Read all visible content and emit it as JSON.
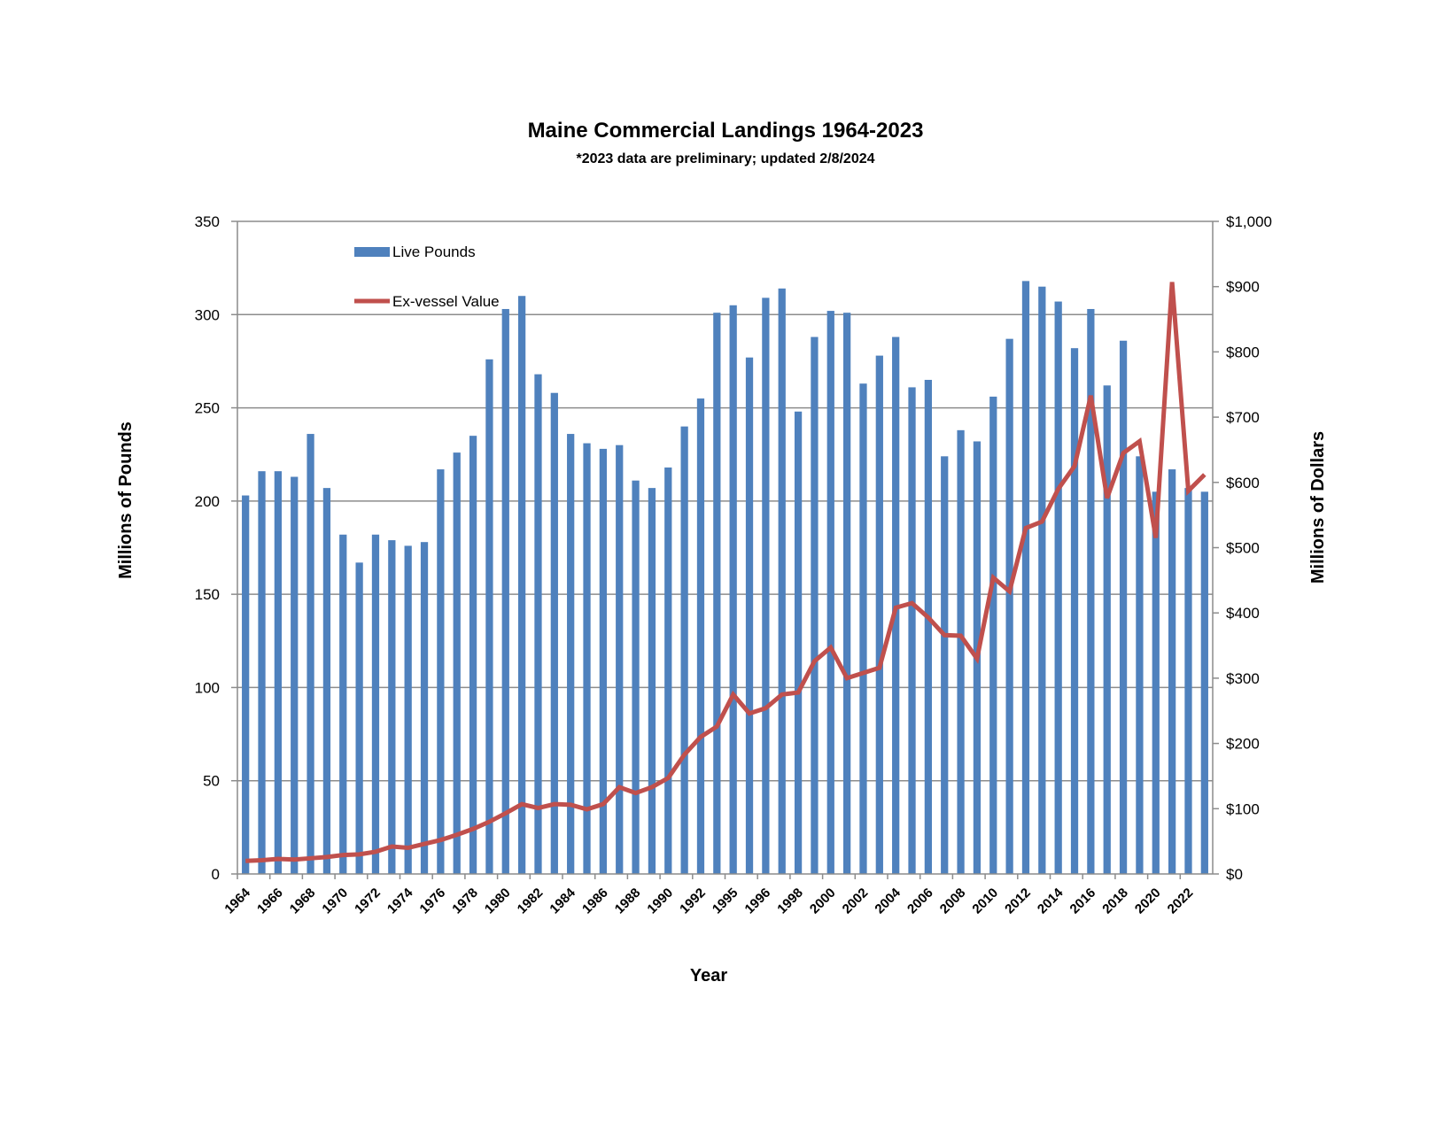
{
  "chart_data": {
    "type": "bar",
    "title": "Maine Commercial Landings 1964-2023",
    "subtitle": "*2023 data are preliminary; updated 2/8/2024",
    "xlabel": "Year",
    "ylabel": "Millions of Pounds",
    "y2label": "Millions of Dollars",
    "ylim": [
      0,
      350
    ],
    "y2lim": [
      0,
      1000
    ],
    "yticks": [
      "0",
      "50",
      "100",
      "150",
      "200",
      "250",
      "300",
      "350"
    ],
    "y2ticks": [
      "$0",
      "$100",
      "$200",
      "$300",
      "$400",
      "$500",
      "$600",
      "$700",
      "$800",
      "$900",
      "$1,000"
    ],
    "grid": true,
    "legend_position": "top-left",
    "categories": [
      "1964",
      "1965",
      "1966",
      "1967",
      "1968",
      "1969",
      "1970",
      "1971",
      "1972",
      "1973",
      "1974",
      "1975",
      "1976",
      "1977",
      "1978",
      "1979",
      "1980",
      "1981",
      "1982",
      "1983",
      "1984",
      "1985",
      "1986",
      "1987",
      "1988",
      "1989",
      "1990",
      "1991",
      "1992",
      "1993",
      "1995",
      "1995",
      "1996",
      "1997",
      "1998",
      "1999",
      "2000",
      "2001",
      "2002",
      "2003",
      "2004",
      "2005",
      "2006",
      "2007",
      "2008",
      "2009",
      "2010",
      "2011",
      "2012",
      "2013",
      "2014",
      "2015",
      "2016",
      "2017",
      "2018",
      "2019",
      "2020",
      "2021",
      "2022",
      "2023"
    ],
    "shown_tick_labels": [
      "1964",
      "1966",
      "1968",
      "1970",
      "1972",
      "1974",
      "1976",
      "1978",
      "1980",
      "1982",
      "1984",
      "1986",
      "1988",
      "1990",
      "1992",
      "1995",
      "1996",
      "1998",
      "2000",
      "2002",
      "2004",
      "2006",
      "2008",
      "2010",
      "2012",
      "2014",
      "2016",
      "2018",
      "2020",
      "2022"
    ],
    "series": [
      {
        "name": "Live Pounds",
        "type": "bar",
        "axis": "left",
        "color": "#4f81bd",
        "values": [
          203,
          216,
          216,
          213,
          236,
          207,
          182,
          167,
          182,
          179,
          176,
          178,
          217,
          226,
          235,
          276,
          303,
          310,
          268,
          258,
          236,
          231,
          228,
          230,
          211,
          207,
          218,
          240,
          255,
          301,
          305,
          277,
          309,
          314,
          248,
          288,
          302,
          301,
          263,
          278,
          288,
          261,
          265,
          224,
          238,
          232,
          256,
          287,
          318,
          315,
          307,
          282,
          303,
          262,
          286,
          224,
          205,
          217,
          207,
          205
        ]
      },
      {
        "name": "Ex-vessel Value",
        "type": "line",
        "axis": "right",
        "color": "#c0504d",
        "values": [
          20,
          21,
          23,
          22,
          24,
          26,
          29,
          30,
          34,
          42,
          40,
          46,
          52,
          60,
          69,
          80,
          93,
          107,
          101,
          107,
          106,
          99,
          107,
          133,
          124,
          133,
          147,
          183,
          210,
          226,
          275,
          246,
          254,
          275,
          278,
          326,
          347,
          300,
          308,
          316,
          408,
          415,
          393,
          366,
          365,
          330,
          454,
          433,
          530,
          540,
          590,
          625,
          733,
          576,
          645,
          663,
          515,
          907,
          587,
          612
        ]
      }
    ]
  }
}
